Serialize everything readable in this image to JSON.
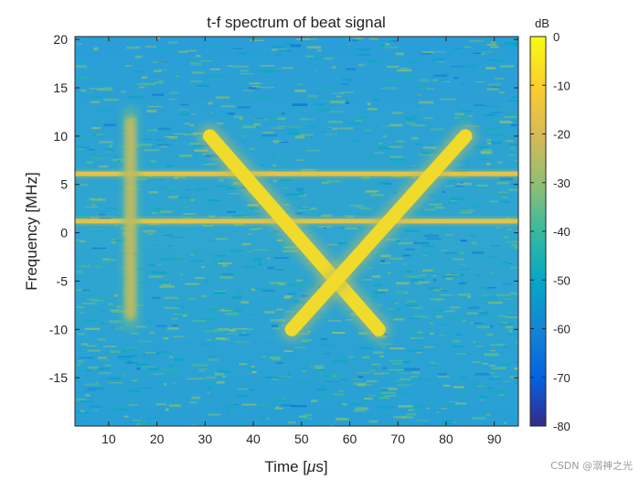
{
  "chart_data": {
    "type": "heatmap",
    "title": "t-f spectrum of beat signal",
    "xlabel_main": "Time [",
    "xlabel_mu": "μ",
    "xlabel_tail": "s]",
    "ylabel": "Frequency [MHz]",
    "xlim": [
      3,
      95
    ],
    "ylim": [
      -20,
      20.3
    ],
    "x_ticks": [
      10,
      20,
      30,
      40,
      50,
      60,
      70,
      80,
      90
    ],
    "y_ticks": [
      20,
      15,
      10,
      5,
      0,
      -5,
      -10,
      -15
    ],
    "colorbar": {
      "label": "dB",
      "range": [
        -80,
        0
      ],
      "ticks": [
        0,
        -10,
        -20,
        -30,
        -40,
        -50,
        -60,
        -70,
        -80
      ],
      "colormap": "parula"
    },
    "background_level_db": -40,
    "features": [
      {
        "name": "horizontal-line-1",
        "kind": "hline",
        "freq_mhz": 6.1,
        "t_start": 3,
        "t_end": 95,
        "level_db": -15
      },
      {
        "name": "horizontal-line-2",
        "kind": "hline",
        "freq_mhz": 1.2,
        "t_start": 3,
        "t_end": 95,
        "level_db": -15
      },
      {
        "name": "descending-chirp",
        "kind": "line",
        "t_start": 31,
        "f_start": 10,
        "t_end": 66,
        "f_end": -10,
        "level_db": -5
      },
      {
        "name": "ascending-chirp",
        "kind": "line",
        "t_start": 48,
        "f_start": -10,
        "t_end": 84,
        "f_end": 10,
        "level_db": -5
      },
      {
        "name": "vertical-band",
        "kind": "vband",
        "time_us": 14.5,
        "f_start": -9,
        "f_end": 12,
        "level_db": -22
      }
    ]
  },
  "watermark": "CSDN @溺神之光"
}
